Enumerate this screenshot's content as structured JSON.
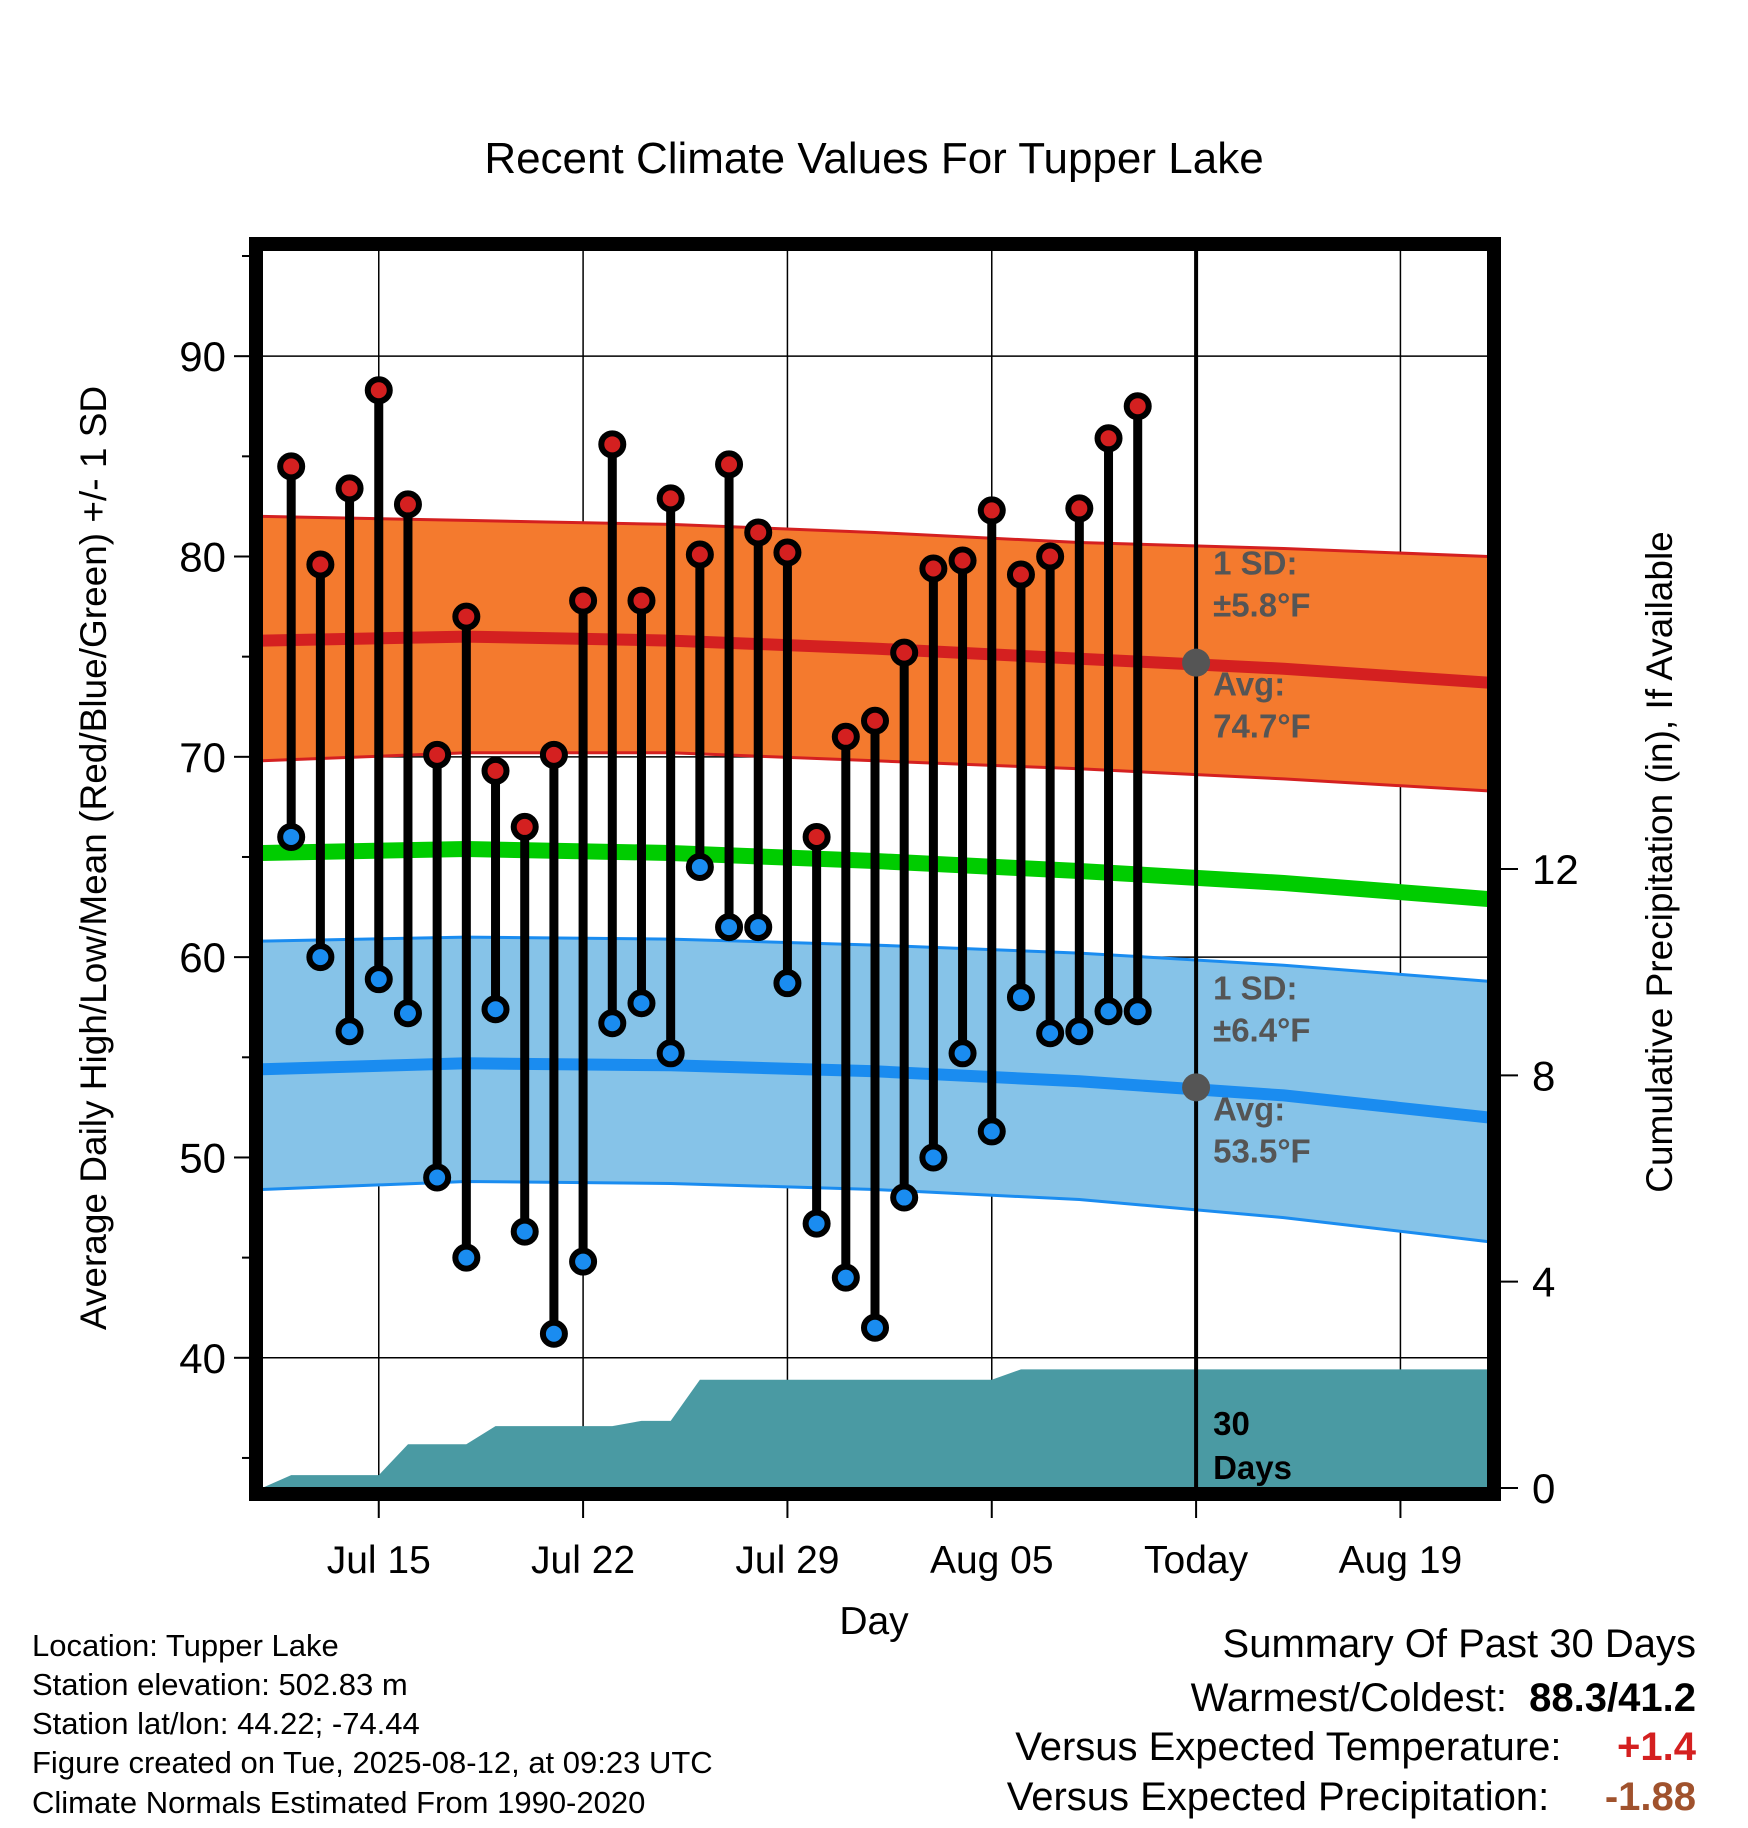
{
  "chart_data": {
    "type": "climate-range",
    "title": "Recent Climate Values For Tupper Lake",
    "xlabel": "Day",
    "ylabel_left": "Average Daily High/Low/Mean (Red/Blue/Green) +/- 1 SD",
    "ylabel_right": "Cumulative Precipitation (in), If Available",
    "x_ticks": [
      "Jul 15",
      "Jul 22",
      "Jul 29",
      "Aug 05",
      "Today",
      "Aug 19"
    ],
    "x_tick_dates": [
      "2025-07-15",
      "2025-07-22",
      "2025-07-29",
      "2025-08-05",
      "2025-08-12",
      "2025-08-19"
    ],
    "xlim": [
      "2025-07-11",
      "2025-08-22"
    ],
    "y_left_ticks": [
      40,
      50,
      60,
      70,
      80,
      90
    ],
    "y_left_lim": [
      33.5,
      95.3
    ],
    "y_right_ticks": [
      0,
      4,
      8,
      12
    ],
    "y_right_lim": [
      0,
      24
    ],
    "grid": true,
    "today": "2025-08-12",
    "today_label": "Today",
    "daily": [
      {
        "date": "2025-07-12",
        "high": 84.5,
        "low": 66.0
      },
      {
        "date": "2025-07-13",
        "high": 79.6,
        "low": 60.0
      },
      {
        "date": "2025-07-14",
        "high": 83.4,
        "low": 56.3
      },
      {
        "date": "2025-07-15",
        "high": 88.3,
        "low": 58.9
      },
      {
        "date": "2025-07-16",
        "high": 82.6,
        "low": 57.2
      },
      {
        "date": "2025-07-17",
        "high": 70.1,
        "low": 49.0
      },
      {
        "date": "2025-07-18",
        "high": 77.0,
        "low": 45.0
      },
      {
        "date": "2025-07-19",
        "high": 69.3,
        "low": 57.4
      },
      {
        "date": "2025-07-20",
        "high": 66.5,
        "low": 46.3
      },
      {
        "date": "2025-07-21",
        "high": 70.1,
        "low": 41.2
      },
      {
        "date": "2025-07-22",
        "high": 77.8,
        "low": 44.8
      },
      {
        "date": "2025-07-23",
        "high": 85.6,
        "low": 56.7
      },
      {
        "date": "2025-07-24",
        "high": 77.8,
        "low": 57.7
      },
      {
        "date": "2025-07-25",
        "high": 82.9,
        "low": 55.2
      },
      {
        "date": "2025-07-26",
        "high": 80.1,
        "low": 64.5
      },
      {
        "date": "2025-07-27",
        "high": 84.6,
        "low": 61.5
      },
      {
        "date": "2025-07-28",
        "high": 81.2,
        "low": 61.5
      },
      {
        "date": "2025-07-29",
        "high": 80.2,
        "low": 58.7
      },
      {
        "date": "2025-07-30",
        "high": 66.0,
        "low": 46.7
      },
      {
        "date": "2025-07-31",
        "high": 71.0,
        "low": 44.0
      },
      {
        "date": "2025-08-01",
        "high": 71.8,
        "low": 41.5
      },
      {
        "date": "2025-08-02",
        "high": 75.2,
        "low": 48.0
      },
      {
        "date": "2025-08-03",
        "high": 79.4,
        "low": 50.0
      },
      {
        "date": "2025-08-04",
        "high": 79.8,
        "low": 55.2
      },
      {
        "date": "2025-08-05",
        "high": 82.3,
        "low": 51.3
      },
      {
        "date": "2025-08-06",
        "high": 79.1,
        "low": 58.0
      },
      {
        "date": "2025-08-07",
        "high": 80.0,
        "low": 56.2
      },
      {
        "date": "2025-08-08",
        "high": 82.4,
        "low": 56.3
      },
      {
        "date": "2025-08-09",
        "high": 85.9,
        "low": 57.3
      },
      {
        "date": "2025-08-10",
        "high": 87.5,
        "low": 57.3
      }
    ],
    "normal_high": {
      "dates": [
        "2025-07-11",
        "2025-07-18",
        "2025-07-25",
        "2025-08-01",
        "2025-08-08",
        "2025-08-15",
        "2025-08-22"
      ],
      "mean": [
        75.8,
        76.0,
        75.8,
        75.4,
        74.9,
        74.4,
        73.7
      ],
      "upper": [
        82.0,
        81.8,
        81.6,
        81.2,
        80.7,
        80.4,
        80.0
      ],
      "lower": [
        69.8,
        70.2,
        70.2,
        69.8,
        69.4,
        68.9,
        68.3
      ],
      "sd_label": "1 SD:",
      "sd_value": "±5.8°F",
      "avg_label": "Avg:",
      "avg_value": "74.7°F",
      "today_avg": 74.7
    },
    "normal_mean": {
      "dates": [
        "2025-07-11",
        "2025-07-18",
        "2025-07-25",
        "2025-08-01",
        "2025-08-08",
        "2025-08-15",
        "2025-08-22"
      ],
      "mean": [
        65.2,
        65.4,
        65.2,
        64.8,
        64.3,
        63.7,
        62.9
      ]
    },
    "normal_low": {
      "dates": [
        "2025-07-11",
        "2025-07-18",
        "2025-07-25",
        "2025-08-01",
        "2025-08-08",
        "2025-08-15",
        "2025-08-22"
      ],
      "mean": [
        54.4,
        54.7,
        54.6,
        54.3,
        53.8,
        53.1,
        52.0
      ],
      "upper": [
        60.8,
        61.0,
        60.9,
        60.6,
        60.2,
        59.6,
        58.8
      ],
      "lower": [
        48.4,
        48.8,
        48.7,
        48.4,
        47.9,
        47.0,
        45.8
      ],
      "sd_label": "1 SD:",
      "sd_value": "±6.4°F",
      "avg_label": "Avg:",
      "avg_value": "53.5°F",
      "today_avg": 53.5
    },
    "precip_cumulative": {
      "dates": [
        "2025-07-11",
        "2025-07-12",
        "2025-07-15",
        "2025-07-16",
        "2025-07-18",
        "2025-07-19",
        "2025-07-23",
        "2025-07-24",
        "2025-07-25",
        "2025-07-26",
        "2025-08-05",
        "2025-08-06",
        "2025-08-22"
      ],
      "values": [
        0.0,
        0.25,
        0.25,
        0.85,
        0.85,
        1.2,
        1.2,
        1.3,
        1.3,
        2.1,
        2.1,
        2.3,
        2.3
      ],
      "label_line1": "30",
      "label_line2": "Days"
    },
    "colors": {
      "high_band": "#f47a2e",
      "high_line": "#d42020",
      "low_band": "#86c3e8",
      "low_line": "#1a8cf0",
      "mean_line": "#00cc00",
      "precip": "#4a9aa3",
      "high_marker": "#d42020",
      "low_marker": "#1a8cf0",
      "annotation": "#555555"
    }
  },
  "info": {
    "location": "Location: Tupper Lake",
    "elevation": "Station elevation: 502.83 m",
    "latlon": "Station lat/lon: 44.22; -74.44",
    "created": "Figure created on Tue, 2025-08-12, at 09:23 UTC",
    "normals": "Climate Normals Estimated From 1990-2020"
  },
  "summary": {
    "heading": "Summary Of Past 30 Days",
    "warm_cold_label": "Warmest/Coldest:",
    "warm_cold_value": "88.3/41.2",
    "temp_label": "Versus Expected Temperature:",
    "temp_value": "+1.4",
    "temp_color": "#d42020",
    "precip_label": "Versus Expected Precipitation:",
    "precip_value": "-1.88",
    "precip_color": "#a0522d"
  }
}
